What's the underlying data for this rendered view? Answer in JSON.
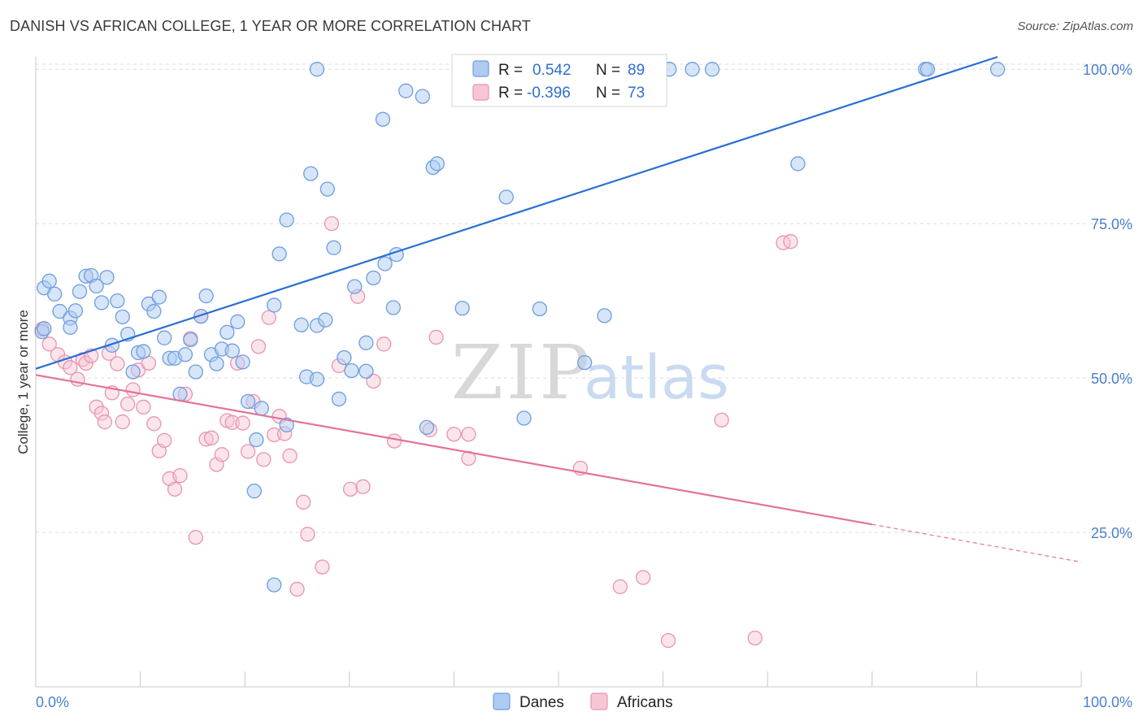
{
  "title": "DANISH VS AFRICAN COLLEGE, 1 YEAR OR MORE CORRELATION CHART",
  "source": "Source: ZipAtlas.com",
  "watermark": {
    "zip": "ZIP",
    "atlas": "atlas"
  },
  "colors": {
    "danes_fill": "#aecbf2",
    "danes_stroke": "#6d9de0",
    "danes_line": "#2a6fd4",
    "africans_fill": "#f7c6d4",
    "africans_stroke": "#ea93ae",
    "africans_line": "#e4729a",
    "grid": "#dddddd",
    "axis_text": "#4a7fcf"
  },
  "legend_top": {
    "r_label": "R =",
    "n_label": "N =",
    "danes": {
      "r": "0.542",
      "n": "89"
    },
    "africans": {
      "r": "-0.396",
      "n": "73"
    }
  },
  "legend_bottom": [
    "Danes",
    "Africans"
  ],
  "chart_data": {
    "type": "scatter",
    "title": "DANISH VS AFRICAN COLLEGE, 1 YEAR OR MORE CORRELATION CHART",
    "xlabel": "",
    "ylabel": "College, 1 year or more",
    "xlim": [
      0,
      100
    ],
    "ylim": [
      0,
      102
    ],
    "x_tick_labels": [
      "0.0%",
      "100.0%"
    ],
    "y_tick_labels": [
      {
        "value": 25,
        "label": "25.0%"
      },
      {
        "value": 50,
        "label": "50.0%"
      },
      {
        "value": 75,
        "label": "75.0%"
      },
      {
        "value": 100,
        "label": "100.0%"
      }
    ],
    "grid": true,
    "legend_position": "top-center",
    "series": [
      {
        "name": "Danes",
        "r": 0.542,
        "n": 89,
        "trend": {
          "x0": 0,
          "y0": 51.5,
          "x1": 92,
          "y1": 102
        },
        "points": [
          [
            0.6,
            57.5
          ],
          [
            0.8,
            58.0
          ],
          [
            0.8,
            64.6
          ],
          [
            1.3,
            65.7
          ],
          [
            1.8,
            63.6
          ],
          [
            2.3,
            60.8
          ],
          [
            3.3,
            59.7
          ],
          [
            3.3,
            58.2
          ],
          [
            3.8,
            60.9
          ],
          [
            4.2,
            64.0
          ],
          [
            4.8,
            66.5
          ],
          [
            5.3,
            66.6
          ],
          [
            5.8,
            64.9
          ],
          [
            6.3,
            62.2
          ],
          [
            6.8,
            66.3
          ],
          [
            7.3,
            55.3
          ],
          [
            7.8,
            62.5
          ],
          [
            8.3,
            59.9
          ],
          [
            8.8,
            57.1
          ],
          [
            9.3,
            51.0
          ],
          [
            9.8,
            54.1
          ],
          [
            10.3,
            54.3
          ],
          [
            10.8,
            62.0
          ],
          [
            11.3,
            60.8
          ],
          [
            11.8,
            63.1
          ],
          [
            12.3,
            56.5
          ],
          [
            12.8,
            53.2
          ],
          [
            13.3,
            53.2
          ],
          [
            13.8,
            47.4
          ],
          [
            14.3,
            53.8
          ],
          [
            14.8,
            56.2
          ],
          [
            15.3,
            51.0
          ],
          [
            15.8,
            60.0
          ],
          [
            16.3,
            63.3
          ],
          [
            16.8,
            53.8
          ],
          [
            17.3,
            52.3
          ],
          [
            17.8,
            54.7
          ],
          [
            18.3,
            57.4
          ],
          [
            18.8,
            54.4
          ],
          [
            19.3,
            59.1
          ],
          [
            19.8,
            52.6
          ],
          [
            20.3,
            46.2
          ],
          [
            21.1,
            40.0
          ],
          [
            21.6,
            45.1
          ],
          [
            20.9,
            31.7
          ],
          [
            22.8,
            16.5
          ],
          [
            22.8,
            61.8
          ],
          [
            23.3,
            70.1
          ],
          [
            24.0,
            42.4
          ],
          [
            24.0,
            75.6
          ],
          [
            25.4,
            58.6
          ],
          [
            25.9,
            50.2
          ],
          [
            26.3,
            83.1
          ],
          [
            26.9,
            49.8
          ],
          [
            26.9,
            58.5
          ],
          [
            26.9,
            100.0
          ],
          [
            27.7,
            59.4
          ],
          [
            27.9,
            80.6
          ],
          [
            28.5,
            71.1
          ],
          [
            29.0,
            46.6
          ],
          [
            29.5,
            53.3
          ],
          [
            30.2,
            51.2
          ],
          [
            30.5,
            64.8
          ],
          [
            31.6,
            51.1
          ],
          [
            31.6,
            55.7
          ],
          [
            32.3,
            66.2
          ],
          [
            33.2,
            91.9
          ],
          [
            33.4,
            68.5
          ],
          [
            34.2,
            61.4
          ],
          [
            34.5,
            70.0
          ],
          [
            35.4,
            96.5
          ],
          [
            37.0,
            95.6
          ],
          [
            37.4,
            42.0
          ],
          [
            38.0,
            84.1
          ],
          [
            38.4,
            84.7
          ],
          [
            40.8,
            61.3
          ],
          [
            42.8,
            100.0
          ],
          [
            45.0,
            79.3
          ],
          [
            46.7,
            43.5
          ],
          [
            48.2,
            61.2
          ],
          [
            52.5,
            52.5
          ],
          [
            54.4,
            60.1
          ],
          [
            60.6,
            100.0
          ],
          [
            62.8,
            100.0
          ],
          [
            64.7,
            100.0
          ],
          [
            72.9,
            84.7
          ],
          [
            85.1,
            100.0
          ],
          [
            85.3,
            100.0
          ],
          [
            92.0,
            100.0
          ]
        ]
      },
      {
        "name": "Africans",
        "r": -0.396,
        "n": 73,
        "trend": {
          "x0": 0,
          "y0": 50.5,
          "x1": 80,
          "y1": 26.3,
          "dash_to_x": 100,
          "dash_to_y": 20.2
        },
        "points": [
          [
            0.6,
            57.9
          ],
          [
            1.3,
            55.5
          ],
          [
            2.1,
            53.8
          ],
          [
            2.8,
            52.6
          ],
          [
            3.3,
            51.7
          ],
          [
            4.0,
            49.8
          ],
          [
            4.5,
            53.0
          ],
          [
            4.8,
            52.4
          ],
          [
            5.3,
            53.6
          ],
          [
            5.8,
            45.3
          ],
          [
            6.3,
            44.3
          ],
          [
            6.6,
            42.9
          ],
          [
            7.0,
            54.0
          ],
          [
            7.3,
            47.6
          ],
          [
            7.8,
            52.3
          ],
          [
            8.3,
            42.9
          ],
          [
            8.8,
            45.8
          ],
          [
            9.3,
            48.1
          ],
          [
            9.8,
            51.3
          ],
          [
            10.3,
            45.3
          ],
          [
            10.8,
            52.4
          ],
          [
            11.3,
            42.6
          ],
          [
            11.8,
            38.2
          ],
          [
            12.3,
            39.9
          ],
          [
            12.8,
            33.7
          ],
          [
            13.3,
            32.0
          ],
          [
            13.8,
            34.2
          ],
          [
            14.3,
            47.4
          ],
          [
            14.8,
            56.4
          ],
          [
            15.3,
            24.2
          ],
          [
            15.8,
            60.0
          ],
          [
            16.3,
            40.1
          ],
          [
            16.8,
            40.3
          ],
          [
            17.3,
            36.0
          ],
          [
            17.8,
            37.6
          ],
          [
            18.3,
            43.1
          ],
          [
            18.8,
            42.8
          ],
          [
            19.3,
            52.4
          ],
          [
            19.8,
            42.7
          ],
          [
            20.3,
            38.1
          ],
          [
            20.8,
            46.2
          ],
          [
            21.3,
            55.1
          ],
          [
            21.8,
            36.8
          ],
          [
            22.3,
            59.8
          ],
          [
            22.8,
            40.8
          ],
          [
            23.3,
            43.8
          ],
          [
            23.8,
            41.0
          ],
          [
            24.3,
            37.4
          ],
          [
            25.0,
            15.8
          ],
          [
            25.6,
            29.9
          ],
          [
            26.0,
            24.7
          ],
          [
            27.4,
            19.4
          ],
          [
            28.3,
            75.0
          ],
          [
            29.0,
            52.0
          ],
          [
            30.1,
            32.0
          ],
          [
            30.8,
            63.2
          ],
          [
            31.3,
            32.4
          ],
          [
            32.3,
            49.5
          ],
          [
            33.3,
            55.5
          ],
          [
            34.3,
            39.8
          ],
          [
            37.7,
            41.6
          ],
          [
            38.3,
            56.6
          ],
          [
            40.0,
            40.9
          ],
          [
            41.4,
            37.0
          ],
          [
            41.4,
            40.9
          ],
          [
            52.1,
            35.4
          ],
          [
            55.9,
            16.2
          ],
          [
            58.1,
            17.7
          ],
          [
            60.5,
            7.5
          ],
          [
            65.6,
            43.2
          ],
          [
            68.8,
            7.9
          ],
          [
            71.5,
            71.9
          ],
          [
            72.2,
            72.1
          ]
        ]
      }
    ]
  }
}
